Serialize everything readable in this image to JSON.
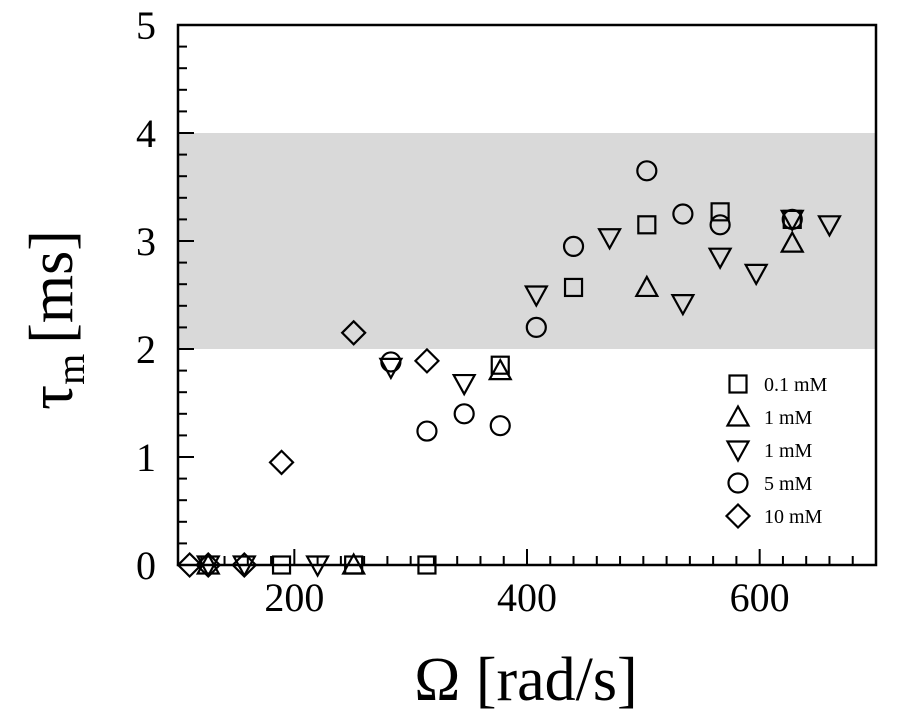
{
  "chart_data": {
    "type": "scatter",
    "title": "",
    "xlabel": "Ω [rad/s]",
    "ylabel_main": "τ",
    "ylabel_sub": "m",
    "ylabel_unit": "[ms]",
    "xlim": [
      100,
      700
    ],
    "ylim": [
      0,
      5
    ],
    "xticks": [
      200,
      400,
      600
    ],
    "yticks": [
      0,
      1,
      2,
      3,
      4,
      5
    ],
    "xtick_labels": [
      "200",
      "400",
      "600"
    ],
    "ytick_labels": [
      "0",
      "1",
      "2",
      "3",
      "4",
      "5"
    ],
    "shaded_band": {
      "y_from": 2,
      "y_to": 4,
      "color": "#d9d9d9"
    },
    "grid": false,
    "legend_position": "lower-right",
    "series": [
      {
        "name": "0.1 mM",
        "marker": "square",
        "points": [
          [
            189,
            0
          ],
          [
            251,
            0
          ],
          [
            314,
            0
          ],
          [
            377,
            1.85
          ],
          [
            440,
            2.57
          ],
          [
            503,
            3.15
          ],
          [
            566,
            3.27
          ],
          [
            628,
            3.2
          ]
        ]
      },
      {
        "name": "1 mM",
        "marker": "triangle-up",
        "points": [
          [
            126,
            0
          ],
          [
            251,
            0
          ],
          [
            377,
            1.8
          ],
          [
            503,
            2.57
          ],
          [
            628,
            2.98
          ]
        ]
      },
      {
        "name": "1 mM",
        "marker": "triangle-down",
        "points": [
          [
            126,
            0
          ],
          [
            157,
            0
          ],
          [
            220,
            0
          ],
          [
            283,
            1.83
          ],
          [
            346,
            1.68
          ],
          [
            408,
            2.5
          ],
          [
            471,
            3.03
          ],
          [
            534,
            2.42
          ],
          [
            566,
            2.85
          ],
          [
            597,
            2.7
          ],
          [
            628,
            3.2
          ],
          [
            660,
            3.15
          ]
        ]
      },
      {
        "name": "5 mM",
        "marker": "circle",
        "points": [
          [
            283,
            1.88
          ],
          [
            314,
            1.24
          ],
          [
            346,
            1.4
          ],
          [
            377,
            1.29
          ],
          [
            408,
            2.2
          ],
          [
            440,
            2.95
          ],
          [
            503,
            3.65
          ],
          [
            534,
            3.25
          ],
          [
            566,
            3.15
          ],
          [
            628,
            3.2
          ]
        ]
      },
      {
        "name": "10 mM",
        "marker": "diamond",
        "points": [
          [
            110,
            0
          ],
          [
            126,
            0
          ],
          [
            157,
            0
          ],
          [
            189,
            0.95
          ],
          [
            251,
            2.15
          ],
          [
            314,
            1.89
          ]
        ]
      }
    ]
  }
}
